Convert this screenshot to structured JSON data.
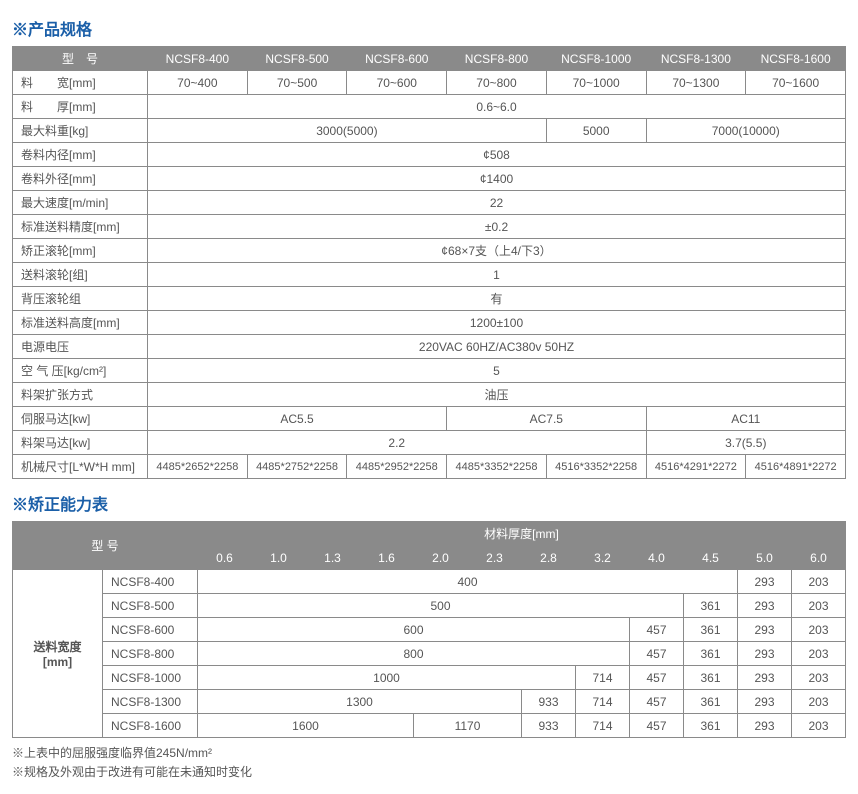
{
  "colors": {
    "titleBlue": "#1b5fa8",
    "headerGray": "#8a8a8a",
    "text": "#555555",
    "border": "#8a8a8a"
  },
  "specTitle": "※产品规格",
  "spec": {
    "h_model": "型　号",
    "models": [
      "NCSF8-400",
      "NCSF8-500",
      "NCSF8-600",
      "NCSF8-800",
      "NCSF8-1000",
      "NCSF8-1300",
      "NCSF8-1600"
    ],
    "r_width": "料　　宽[mm]",
    "width_vals": [
      "70~400",
      "70~500",
      "70~600",
      "70~800",
      "70~1000",
      "70~1300",
      "70~1600"
    ],
    "r_thick": "料　　厚[mm]",
    "thick_val": "0.6~6.0",
    "r_maxw": "最大料重[kg]",
    "maxw_a": "3000(5000)",
    "maxw_b": "5000",
    "maxw_c": "7000(10000)",
    "r_id": "卷料内径[mm]",
    "id_val": "¢508",
    "r_od": "卷料外径[mm]",
    "od_val": "¢1400",
    "r_spd": "最大速度[m/min]",
    "spd_val": "22",
    "r_acc": "标准送料精度[mm]",
    "acc_val": "±0.2",
    "r_stroll": "矫正滚轮[mm]",
    "stroll_val": "¢68×7支（上4/下3）",
    "r_feedr": "送料滚轮[组]",
    "feedr_val": "1",
    "r_bpr": "背压滚轮组",
    "bpr_val": "有",
    "r_fh": "标准送料高度[mm]",
    "fh_val": "1200±100",
    "r_pwr": "电源电压",
    "pwr_val": "220VAC 60HZ/AC380v 50HZ",
    "r_air": "空 气 压[kg/cm²]",
    "air_val": "5",
    "r_exp": "料架扩张方式",
    "exp_val": "油压",
    "r_servo": "伺服马达[kw]",
    "servo_a": "AC5.5",
    "servo_b": "AC7.5",
    "servo_c": "AC11",
    "r_rack": "料架马达[kw]",
    "rack_a": "2.2",
    "rack_b": "3.7(5.5)",
    "r_dim": "机械尺寸[L*W*H mm]",
    "dims": [
      "4485*2652*2258",
      "4485*2752*2258",
      "4485*2952*2258",
      "4485*3352*2258",
      "4516*3352*2258",
      "4516*4291*2272",
      "4516*4891*2272"
    ]
  },
  "capTitle": "※矫正能力表",
  "cap": {
    "h_model": "型 号",
    "h_thick": "材料厚度[mm]",
    "thicks": [
      "0.6",
      "1.0",
      "1.3",
      "1.6",
      "2.0",
      "2.3",
      "2.8",
      "3.2",
      "4.0",
      "4.5",
      "5.0",
      "6.0"
    ],
    "h_width": "送料宽度\n[mm]",
    "rows": [
      {
        "m": "NCSF8-400",
        "span": 10,
        "v": "400",
        "tail": [
          "293",
          "203"
        ]
      },
      {
        "m": "NCSF8-500",
        "span": 9,
        "v": "500",
        "tail": [
          "361",
          "293",
          "203"
        ]
      },
      {
        "m": "NCSF8-600",
        "span": 8,
        "v": "600",
        "tail": [
          "457",
          "361",
          "293",
          "203"
        ]
      },
      {
        "m": "NCSF8-800",
        "span": 8,
        "v": "800",
        "tail": [
          "457",
          "361",
          "293",
          "203"
        ]
      },
      {
        "m": "NCSF8-1000",
        "span": 7,
        "v": "1000",
        "tail": [
          "714",
          "457",
          "361",
          "293",
          "203"
        ]
      },
      {
        "m": "NCSF8-1300",
        "span": 6,
        "v": "1300",
        "tail": [
          "933",
          "714",
          "457",
          "361",
          "293",
          "203"
        ]
      },
      {
        "m": "NCSF8-1600",
        "g1span": 4,
        "g1": "1600",
        "g2span": 2,
        "g2": "1170",
        "tail": [
          "933",
          "714",
          "457",
          "361",
          "293",
          "203"
        ]
      }
    ]
  },
  "notes": [
    "※上表中的屈服强度临界值245N/mm²",
    "※规格及外观由于改进有可能在未通知时变化"
  ]
}
